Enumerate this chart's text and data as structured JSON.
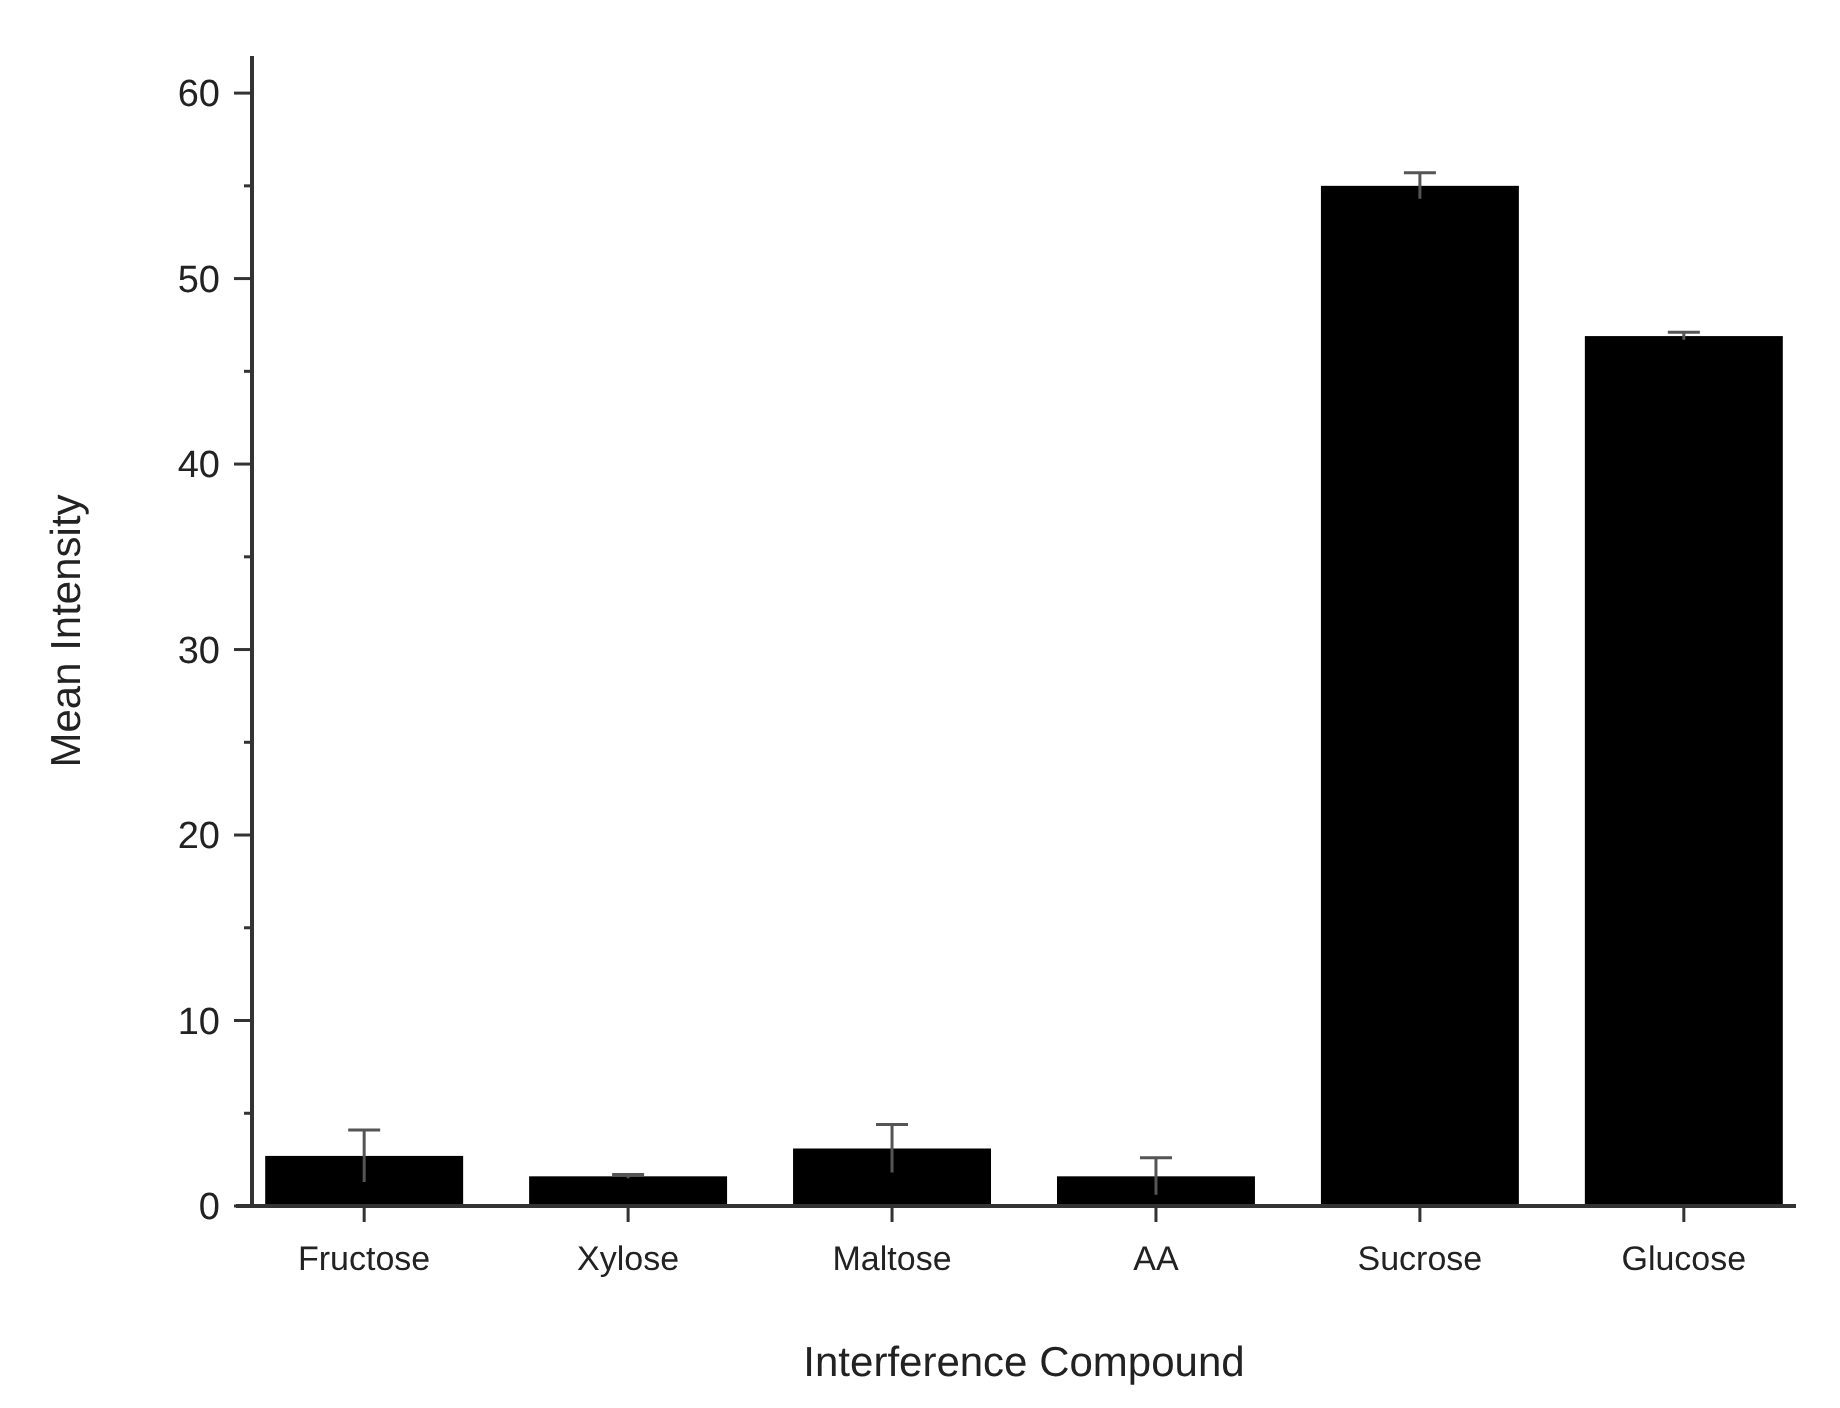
{
  "chart_data": {
    "type": "bar",
    "xlabel": "Interference Compound",
    "ylabel": "Mean Intensity",
    "categories": [
      "Fructose",
      "Xylose",
      "Maltose",
      "AA",
      "Sucrose",
      "Glucose"
    ],
    "values": [
      2.7,
      1.6,
      3.1,
      1.6,
      55.0,
      46.9
    ],
    "errors": [
      1.4,
      0.1,
      1.3,
      1.0,
      0.7,
      0.2
    ],
    "color": "#000000",
    "ylim": [
      0,
      62
    ],
    "yticks": [
      0,
      {
        "value": 5,
        "label": null
      },
      10,
      {
        "value": 15,
        "label": null
      },
      20,
      {
        "value": 25,
        "label": null
      },
      30,
      {
        "value": 35,
        "label": null
      },
      40,
      {
        "value": 45,
        "label": null
      },
      50,
      {
        "value": 55,
        "label": null
      },
      60
    ],
    "grid": false
  }
}
